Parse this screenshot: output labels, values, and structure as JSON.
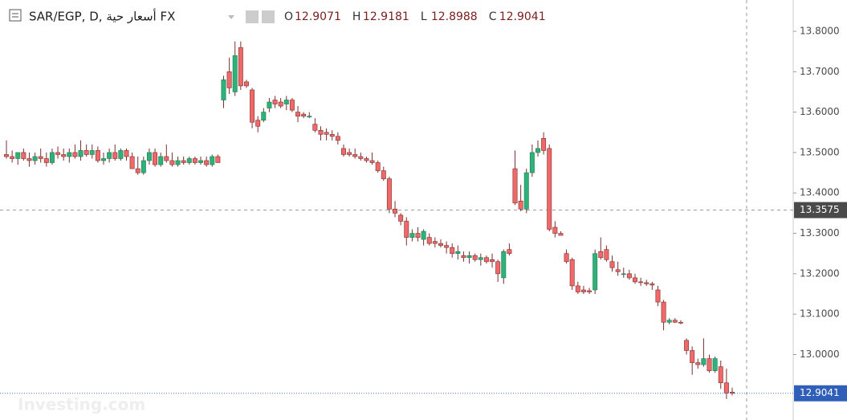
{
  "chart_data": {
    "type": "candlestick",
    "title": "SAR/EGP, D, أسعار حية FX",
    "ohlc_labels": [
      "O",
      "H",
      "L",
      "C"
    ],
    "watermark": "Investing.com",
    "crosshair_price": 13.3575,
    "up_color": "#2eb27a",
    "down_color": "#f06868",
    "edge_color": "#7a3030",
    "ylim": [
      12.838,
      13.8775
    ],
    "yticks": [
      {
        "value": 13.0,
        "label": "13.0000"
      },
      {
        "value": 13.1,
        "label": "13.1000"
      },
      {
        "value": 13.2,
        "label": "13.2000"
      },
      {
        "value": 13.3,
        "label": "13.3000"
      },
      {
        "value": 13.4,
        "label": "13.4000"
      },
      {
        "value": 13.5,
        "label": "13.5000"
      },
      {
        "value": 13.6,
        "label": "13.6000"
      },
      {
        "value": 13.7,
        "label": "13.7000"
      },
      {
        "value": 13.8,
        "label": "13.8000"
      }
    ],
    "ohlc": [
      [
        13.495,
        13.53,
        13.485,
        13.49
      ],
      [
        13.49,
        13.505,
        13.475,
        13.485
      ],
      [
        13.485,
        13.5,
        13.47,
        13.5
      ],
      [
        13.5,
        13.51,
        13.48,
        13.485
      ],
      [
        13.485,
        13.5,
        13.465,
        13.48
      ],
      [
        13.48,
        13.5,
        13.47,
        13.49
      ],
      [
        13.49,
        13.51,
        13.475,
        13.485
      ],
      [
        13.485,
        13.5,
        13.465,
        13.475
      ],
      [
        13.475,
        13.51,
        13.47,
        13.5
      ],
      [
        13.5,
        13.515,
        13.485,
        13.495
      ],
      [
        13.495,
        13.51,
        13.48,
        13.49
      ],
      [
        13.49,
        13.51,
        13.475,
        13.5
      ],
      [
        13.5,
        13.52,
        13.485,
        13.49
      ],
      [
        13.49,
        13.53,
        13.48,
        13.505
      ],
      [
        13.505,
        13.52,
        13.49,
        13.495
      ],
      [
        13.495,
        13.52,
        13.485,
        13.505
      ],
      [
        13.505,
        13.515,
        13.475,
        13.48
      ],
      [
        13.48,
        13.5,
        13.47,
        13.485
      ],
      [
        13.485,
        13.51,
        13.475,
        13.5
      ],
      [
        13.5,
        13.52,
        13.48,
        13.485
      ],
      [
        13.485,
        13.51,
        13.48,
        13.505
      ],
      [
        13.505,
        13.51,
        13.48,
        13.49
      ],
      [
        13.49,
        13.5,
        13.46,
        13.46
      ],
      [
        13.46,
        13.49,
        13.445,
        13.45
      ],
      [
        13.45,
        13.49,
        13.445,
        13.48
      ],
      [
        13.48,
        13.51,
        13.47,
        13.5
      ],
      [
        13.5,
        13.51,
        13.465,
        13.47
      ],
      [
        13.47,
        13.5,
        13.465,
        13.49
      ],
      [
        13.49,
        13.52,
        13.475,
        13.48
      ],
      [
        13.48,
        13.5,
        13.465,
        13.47
      ],
      [
        13.47,
        13.49,
        13.465,
        13.48
      ],
      [
        13.48,
        13.49,
        13.47,
        13.475
      ],
      [
        13.475,
        13.49,
        13.47,
        13.485
      ],
      [
        13.485,
        13.49,
        13.47,
        13.475
      ],
      [
        13.475,
        13.49,
        13.47,
        13.48
      ],
      [
        13.48,
        13.49,
        13.465,
        13.47
      ],
      [
        13.47,
        13.495,
        13.465,
        13.49
      ],
      [
        13.49,
        13.495,
        13.475,
        13.475
      ],
      [
        13.63,
        13.69,
        13.61,
        13.68
      ],
      [
        13.7,
        13.735,
        13.645,
        13.66
      ],
      [
        13.65,
        13.775,
        13.64,
        13.74
      ],
      [
        13.76,
        13.775,
        13.655,
        13.665
      ],
      [
        13.675,
        13.68,
        13.66,
        13.665
      ],
      [
        13.655,
        13.66,
        13.56,
        13.575
      ],
      [
        13.58,
        13.59,
        13.55,
        13.565
      ],
      [
        13.58,
        13.61,
        13.575,
        13.6
      ],
      [
        13.61,
        13.635,
        13.6,
        13.625
      ],
      [
        13.63,
        13.64,
        13.61,
        13.62
      ],
      [
        13.625,
        13.635,
        13.61,
        13.615
      ],
      [
        13.62,
        13.64,
        13.605,
        13.63
      ],
      [
        13.63,
        13.635,
        13.6,
        13.605
      ],
      [
        13.6,
        13.615,
        13.575,
        13.59
      ],
      [
        13.595,
        13.6,
        13.585,
        13.59
      ],
      [
        13.59,
        13.6,
        13.585,
        13.59
      ],
      [
        13.57,
        13.585,
        13.55,
        13.555
      ],
      [
        13.555,
        13.565,
        13.53,
        13.545
      ],
      [
        13.55,
        13.56,
        13.53,
        13.545
      ],
      [
        13.545,
        13.555,
        13.53,
        13.54
      ],
      [
        13.54,
        13.55,
        13.52,
        13.53
      ],
      [
        13.51,
        13.52,
        13.49,
        13.495
      ],
      [
        13.5,
        13.51,
        13.49,
        13.495
      ],
      [
        13.495,
        13.51,
        13.485,
        13.49
      ],
      [
        13.49,
        13.5,
        13.48,
        13.485
      ],
      [
        13.485,
        13.49,
        13.475,
        13.48
      ],
      [
        13.48,
        13.5,
        13.47,
        13.475
      ],
      [
        13.475,
        13.48,
        13.45,
        13.455
      ],
      [
        13.455,
        13.465,
        13.43,
        13.435
      ],
      [
        13.435,
        13.44,
        13.35,
        13.36
      ],
      [
        13.36,
        13.38,
        13.34,
        13.35
      ],
      [
        13.345,
        13.35,
        13.32,
        13.33
      ],
      [
        13.33,
        13.34,
        13.27,
        13.29
      ],
      [
        13.29,
        13.31,
        13.28,
        13.3
      ],
      [
        13.3,
        13.315,
        13.28,
        13.29
      ],
      [
        13.285,
        13.31,
        13.27,
        13.305
      ],
      [
        13.29,
        13.3,
        13.27,
        13.275
      ],
      [
        13.28,
        13.29,
        13.265,
        13.275
      ],
      [
        13.275,
        13.285,
        13.265,
        13.27
      ],
      [
        13.27,
        13.28,
        13.25,
        13.265
      ],
      [
        13.265,
        13.275,
        13.24,
        13.25
      ],
      [
        13.25,
        13.27,
        13.235,
        13.255
      ],
      [
        13.245,
        13.255,
        13.23,
        13.24
      ],
      [
        13.24,
        13.255,
        13.225,
        13.245
      ],
      [
        13.245,
        13.25,
        13.23,
        13.235
      ],
      [
        13.235,
        13.25,
        13.22,
        13.24
      ],
      [
        13.24,
        13.245,
        13.225,
        13.23
      ],
      [
        13.235,
        13.25,
        13.215,
        13.23
      ],
      [
        13.23,
        13.235,
        13.18,
        13.2
      ],
      [
        13.19,
        13.26,
        13.175,
        13.255
      ],
      [
        13.26,
        13.275,
        13.245,
        13.25
      ],
      [
        13.46,
        13.505,
        13.37,
        13.375
      ],
      [
        13.38,
        13.42,
        13.355,
        13.36
      ],
      [
        13.36,
        13.46,
        13.35,
        13.45
      ],
      [
        13.45,
        13.52,
        13.44,
        13.5
      ],
      [
        13.5,
        13.53,
        13.49,
        13.51
      ],
      [
        13.535,
        13.55,
        13.495,
        13.505
      ],
      [
        13.51,
        13.52,
        13.305,
        13.31
      ],
      [
        13.315,
        13.33,
        13.29,
        13.3
      ],
      [
        13.3,
        13.305,
        13.295,
        13.295
      ],
      [
        13.25,
        13.26,
        13.225,
        13.23
      ],
      [
        13.235,
        13.24,
        13.16,
        13.17
      ],
      [
        13.17,
        13.18,
        13.15,
        13.155
      ],
      [
        13.16,
        13.17,
        13.15,
        13.155
      ],
      [
        13.158,
        13.165,
        13.15,
        13.155
      ],
      [
        13.16,
        13.26,
        13.15,
        13.25
      ],
      [
        13.255,
        13.29,
        13.235,
        13.24
      ],
      [
        13.26,
        13.27,
        13.23,
        13.235
      ],
      [
        13.23,
        13.245,
        13.205,
        13.215
      ],
      [
        13.21,
        13.23,
        13.195,
        13.205
      ],
      [
        13.2,
        13.215,
        13.19,
        13.2
      ],
      [
        13.2,
        13.21,
        13.185,
        13.19
      ],
      [
        13.19,
        13.2,
        13.175,
        13.18
      ],
      [
        13.18,
        13.19,
        13.17,
        13.178
      ],
      [
        13.178,
        13.185,
        13.17,
        13.175
      ],
      [
        13.175,
        13.18,
        13.16,
        13.172
      ],
      [
        13.16,
        13.17,
        13.12,
        13.13
      ],
      [
        13.13,
        13.135,
        13.06,
        13.08
      ],
      [
        13.08,
        13.09,
        13.075,
        13.085
      ],
      [
        13.085,
        13.09,
        13.078,
        13.08
      ],
      [
        13.08,
        13.085,
        13.075,
        13.078
      ],
      [
        13.035,
        13.04,
        13.0,
        13.01
      ],
      [
        13.01,
        13.02,
        12.95,
        12.98
      ],
      [
        12.98,
        12.99,
        12.965,
        12.975
      ],
      [
        12.975,
        13.04,
        12.97,
        12.99
      ],
      [
        12.99,
        13.0,
        12.955,
        12.96
      ],
      [
        12.96,
        12.995,
        12.955,
        12.99
      ],
      [
        12.97,
        12.985,
        12.915,
        12.93
      ],
      [
        12.93,
        12.965,
        12.89,
        12.905
      ],
      [
        12.9071,
        12.9181,
        12.8988,
        12.9041
      ]
    ]
  }
}
